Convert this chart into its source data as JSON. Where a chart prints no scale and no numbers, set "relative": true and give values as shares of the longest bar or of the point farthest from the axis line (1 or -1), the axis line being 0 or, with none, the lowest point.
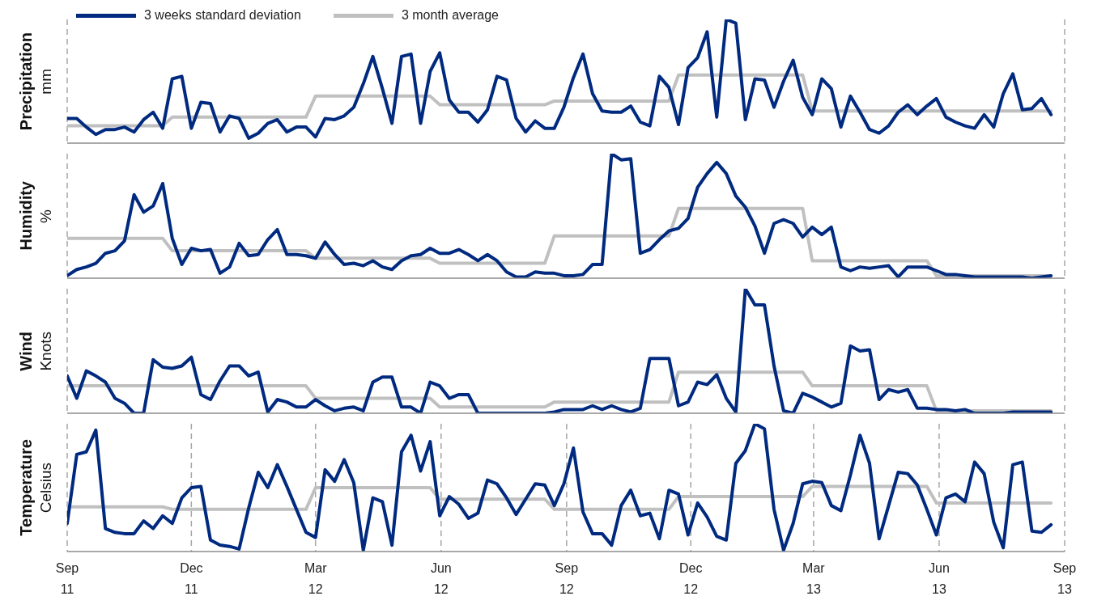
{
  "chart_data": [
    {
      "type": "line",
      "ylabel": "Precipitation",
      "annotations": [
        "mm"
      ],
      "relative": true,
      "legend": "top left",
      "grid": "x",
      "tick_labels": false,
      "marker": "none",
      "xlim": [
        "2011-09-01",
        "2013-09-01"
      ],
      "xticks": [
        {
          "value": "2011-09-01",
          "label": null
        },
        {
          "value": "2011-12-01",
          "label": null
        },
        {
          "value": "2012-03-01",
          "label": null
        },
        {
          "value": "2012-06-01",
          "label": null
        },
        {
          "value": "2012-09-01",
          "label": null
        },
        {
          "value": "2012-12-01",
          "label": null
        },
        {
          "value": "2013-03-01",
          "label": null
        },
        {
          "value": "2013-06-01",
          "label": null
        },
        {
          "value": "2013-09-01",
          "label": null
        }
      ],
      "x": [
        "2011-09-01",
        "2011-09-08",
        "2011-09-15",
        "2011-09-22",
        "2011-09-29",
        "2011-10-06",
        "2011-10-13",
        "2011-10-20",
        "2011-10-27",
        "2011-11-03",
        "2011-11-10",
        "2011-11-17",
        "2011-11-24",
        "2011-12-01",
        "2011-12-08",
        "2011-12-15",
        "2011-12-22",
        "2011-12-29",
        "2012-01-05",
        "2012-01-12",
        "2012-01-19",
        "2012-01-26",
        "2012-02-02",
        "2012-02-09",
        "2012-02-16",
        "2012-02-23",
        "2012-03-01",
        "2012-03-08",
        "2012-03-15",
        "2012-03-22",
        "2012-03-29",
        "2012-04-05",
        "2012-04-12",
        "2012-04-19",
        "2012-04-26",
        "2012-05-03",
        "2012-05-10",
        "2012-05-17",
        "2012-05-24",
        "2012-05-31",
        "2012-06-07",
        "2012-06-14",
        "2012-06-21",
        "2012-06-28",
        "2012-07-05",
        "2012-07-12",
        "2012-07-19",
        "2012-07-26",
        "2012-08-02",
        "2012-08-09",
        "2012-08-16",
        "2012-08-23",
        "2012-08-30",
        "2012-09-06",
        "2012-09-13",
        "2012-09-20",
        "2012-09-27",
        "2012-10-04",
        "2012-10-11",
        "2012-10-18",
        "2012-10-25",
        "2012-11-01",
        "2012-11-08",
        "2012-11-15",
        "2012-11-22",
        "2012-11-29",
        "2012-12-06",
        "2012-12-13",
        "2012-12-20",
        "2012-12-27",
        "2013-01-03",
        "2013-01-10",
        "2013-01-17",
        "2013-01-24",
        "2013-01-31",
        "2013-02-07",
        "2013-02-14",
        "2013-02-21",
        "2013-02-28",
        "2013-03-07",
        "2013-03-14",
        "2013-03-21",
        "2013-03-28",
        "2013-04-04",
        "2013-04-11",
        "2013-04-18",
        "2013-04-25",
        "2013-05-02",
        "2013-05-09",
        "2013-05-16",
        "2013-05-23",
        "2013-05-30",
        "2013-06-06",
        "2013-06-13",
        "2013-06-20",
        "2013-06-27",
        "2013-07-04",
        "2013-07-11",
        "2013-07-18",
        "2013-07-25",
        "2013-08-01",
        "2013-08-08",
        "2013-08-15",
        "2013-08-22"
      ],
      "series": [
        {
          "name": "3 weeks standard deviation",
          "color": "#002a7f",
          "values": [
            0.2,
            0.2,
            0.13,
            0.07,
            0.11,
            0.11,
            0.13,
            0.09,
            0.19,
            0.25,
            0.12,
            0.52,
            0.54,
            0.12,
            0.33,
            0.32,
            0.09,
            0.22,
            0.2,
            0.04,
            0.08,
            0.16,
            0.19,
            0.09,
            0.13,
            0.13,
            0.05,
            0.2,
            0.19,
            0.22,
            0.29,
            0.48,
            0.7,
            0.44,
            0.16,
            0.7,
            0.72,
            0.16,
            0.58,
            0.73,
            0.35,
            0.25,
            0.25,
            0.17,
            0.27,
            0.54,
            0.51,
            0.2,
            0.09,
            0.18,
            0.12,
            0.12,
            0.29,
            0.53,
            0.72,
            0.4,
            0.26,
            0.25,
            0.25,
            0.3,
            0.17,
            0.14,
            0.54,
            0.45,
            0.15,
            0.61,
            0.69,
            0.9,
            0.21,
            1.0,
            0.97,
            0.19,
            0.52,
            0.51,
            0.29,
            0.5,
            0.67,
            0.37,
            0.23,
            0.52,
            0.44,
            0.13,
            0.38,
            0.25,
            0.11,
            0.08,
            0.14,
            0.25,
            0.31,
            0.23,
            0.3,
            0.36,
            0.21,
            0.17,
            0.14,
            0.12,
            0.23,
            0.13,
            0.4,
            0.56,
            0.27,
            0.28,
            0.36,
            0.23
          ]
        },
        {
          "name": "3 month average",
          "color": "#c0c0c0",
          "x": [
            "2011-09-01",
            "2011-11-10",
            "2011-11-17",
            "2012-02-23",
            "2012-03-01",
            "2012-05-24",
            "2012-05-31",
            "2012-08-16",
            "2012-08-23",
            "2012-11-15",
            "2012-11-22",
            "2013-02-21",
            "2013-02-28",
            "2013-05-23",
            "2013-05-30",
            "2013-08-22"
          ],
          "values": [
            0.14,
            0.14,
            0.21,
            0.21,
            0.38,
            0.38,
            0.31,
            0.31,
            0.34,
            0.34,
            0.55,
            0.55,
            0.26,
            0.26,
            0.26,
            0.26
          ]
        }
      ]
    },
    {
      "type": "line",
      "ylabel": "Humidity",
      "annotations": [
        "%"
      ],
      "relative": true,
      "grid": "x",
      "tick_labels": false,
      "marker": "none",
      "xlim": [
        "2011-09-01",
        "2013-09-01"
      ],
      "xticks": [
        {
          "value": "2011-09-01",
          "label": null
        },
        {
          "value": "2011-12-01",
          "label": null
        },
        {
          "value": "2012-03-01",
          "label": null
        },
        {
          "value": "2012-06-01",
          "label": null
        },
        {
          "value": "2012-09-01",
          "label": null
        },
        {
          "value": "2012-12-01",
          "label": null
        },
        {
          "value": "2013-03-01",
          "label": null
        },
        {
          "value": "2013-06-01",
          "label": null
        },
        {
          "value": "2013-09-01",
          "label": null
        }
      ],
      "x": [
        "2011-09-01",
        "2011-09-08",
        "2011-09-15",
        "2011-09-22",
        "2011-09-29",
        "2011-10-06",
        "2011-10-13",
        "2011-10-20",
        "2011-10-27",
        "2011-11-03",
        "2011-11-10",
        "2011-11-17",
        "2011-11-24",
        "2011-12-01",
        "2011-12-08",
        "2011-12-15",
        "2011-12-22",
        "2011-12-29",
        "2012-01-05",
        "2012-01-12",
        "2012-01-19",
        "2012-01-26",
        "2012-02-02",
        "2012-02-09",
        "2012-02-16",
        "2012-02-23",
        "2012-03-01",
        "2012-03-08",
        "2012-03-15",
        "2012-03-22",
        "2012-03-29",
        "2012-04-05",
        "2012-04-12",
        "2012-04-19",
        "2012-04-26",
        "2012-05-03",
        "2012-05-10",
        "2012-05-17",
        "2012-05-24",
        "2012-05-31",
        "2012-06-07",
        "2012-06-14",
        "2012-06-21",
        "2012-06-28",
        "2012-07-05",
        "2012-07-12",
        "2012-07-19",
        "2012-07-26",
        "2012-08-02",
        "2012-08-09",
        "2012-08-16",
        "2012-08-23",
        "2012-08-30",
        "2012-09-06",
        "2012-09-13",
        "2012-09-20",
        "2012-09-27",
        "2012-10-04",
        "2012-10-11",
        "2012-10-18",
        "2012-10-25",
        "2012-11-01",
        "2012-11-08",
        "2012-11-15",
        "2012-11-22",
        "2012-11-29",
        "2012-12-06",
        "2012-12-13",
        "2012-12-20",
        "2012-12-27",
        "2013-01-03",
        "2013-01-10",
        "2013-01-17",
        "2013-01-24",
        "2013-01-31",
        "2013-02-07",
        "2013-02-14",
        "2013-02-21",
        "2013-02-28",
        "2013-03-07",
        "2013-03-14",
        "2013-03-21",
        "2013-03-28",
        "2013-04-04",
        "2013-04-11",
        "2013-04-18",
        "2013-04-25",
        "2013-05-02",
        "2013-05-09",
        "2013-05-16",
        "2013-05-23",
        "2013-05-30",
        "2013-06-06",
        "2013-06-13",
        "2013-06-20",
        "2013-06-27",
        "2013-07-04",
        "2013-07-11",
        "2013-07-18",
        "2013-07-25",
        "2013-08-01",
        "2013-08-08",
        "2013-08-15",
        "2013-08-22"
      ],
      "series": [
        {
          "color": "#002a7f",
          "values": [
            0.02,
            0.07,
            0.09,
            0.12,
            0.2,
            0.22,
            0.3,
            0.67,
            0.53,
            0.58,
            0.76,
            0.32,
            0.11,
            0.24,
            0.22,
            0.23,
            0.04,
            0.09,
            0.28,
            0.18,
            0.19,
            0.31,
            0.39,
            0.19,
            0.19,
            0.18,
            0.16,
            0.29,
            0.19,
            0.11,
            0.12,
            0.1,
            0.14,
            0.09,
            0.07,
            0.14,
            0.18,
            0.19,
            0.24,
            0.2,
            0.2,
            0.23,
            0.19,
            0.14,
            0.19,
            0.14,
            0.05,
            0.01,
            0.01,
            0.05,
            0.04,
            0.04,
            0.02,
            0.02,
            0.03,
            0.11,
            0.11,
            1.0,
            0.95,
            0.96,
            0.2,
            0.23,
            0.31,
            0.38,
            0.4,
            0.48,
            0.73,
            0.84,
            0.93,
            0.84,
            0.66,
            0.57,
            0.42,
            0.2,
            0.44,
            0.47,
            0.44,
            0.33,
            0.41,
            0.35,
            0.41,
            0.09,
            0.06,
            0.09,
            0.08,
            0.09,
            0.1,
            0.01,
            0.09,
            0.09,
            0.09,
            0.06,
            0.03,
            0.03,
            0.02,
            0.01,
            0.01,
            0.01,
            0.01,
            0.01,
            0.01,
            0,
            0.01,
            0.02
          ]
        },
        {
          "color": "#c0c0c0",
          "x": [
            "2011-09-01",
            "2011-11-10",
            "2011-11-17",
            "2012-02-23",
            "2012-03-01",
            "2012-05-24",
            "2012-05-31",
            "2012-08-16",
            "2012-08-23",
            "2012-11-15",
            "2012-11-22",
            "2013-02-21",
            "2013-02-28",
            "2013-05-23",
            "2013-05-30",
            "2013-08-22"
          ],
          "values": [
            0.32,
            0.32,
            0.22,
            0.22,
            0.16,
            0.16,
            0.12,
            0.12,
            0.34,
            0.34,
            0.56,
            0.56,
            0.14,
            0.14,
            0.02,
            0.02
          ]
        }
      ]
    },
    {
      "type": "line",
      "ylabel": "Wind",
      "annotations": [
        "Knots"
      ],
      "relative": true,
      "grid": "x",
      "tick_labels": false,
      "marker": "none",
      "xlim": [
        "2011-09-01",
        "2013-09-01"
      ],
      "xticks": [
        {
          "value": "2011-09-01",
          "label": null
        },
        {
          "value": "2011-12-01",
          "label": null
        },
        {
          "value": "2012-03-01",
          "label": null
        },
        {
          "value": "2012-06-01",
          "label": null
        },
        {
          "value": "2012-09-01",
          "label": null
        },
        {
          "value": "2012-12-01",
          "label": null
        },
        {
          "value": "2013-03-01",
          "label": null
        },
        {
          "value": "2013-06-01",
          "label": null
        },
        {
          "value": "2013-09-01",
          "label": null
        }
      ],
      "x": [
        "2011-09-01",
        "2011-09-08",
        "2011-09-15",
        "2011-09-22",
        "2011-09-29",
        "2011-10-06",
        "2011-10-13",
        "2011-10-20",
        "2011-10-27",
        "2011-11-03",
        "2011-11-10",
        "2011-11-17",
        "2011-11-24",
        "2011-12-01",
        "2011-12-08",
        "2011-12-15",
        "2011-12-22",
        "2011-12-29",
        "2012-01-05",
        "2012-01-12",
        "2012-01-19",
        "2012-01-26",
        "2012-02-02",
        "2012-02-09",
        "2012-02-16",
        "2012-02-23",
        "2012-03-01",
        "2012-03-08",
        "2012-03-15",
        "2012-03-22",
        "2012-03-29",
        "2012-04-05",
        "2012-04-12",
        "2012-04-19",
        "2012-04-26",
        "2012-05-03",
        "2012-05-10",
        "2012-05-17",
        "2012-05-24",
        "2012-05-31",
        "2012-06-07",
        "2012-06-14",
        "2012-06-21",
        "2012-06-28",
        "2012-07-05",
        "2012-07-12",
        "2012-07-19",
        "2012-07-26",
        "2012-08-02",
        "2012-08-09",
        "2012-08-16",
        "2012-08-23",
        "2012-08-30",
        "2012-09-06",
        "2012-09-13",
        "2012-09-20",
        "2012-09-27",
        "2012-10-04",
        "2012-10-11",
        "2012-10-18",
        "2012-10-25",
        "2012-11-01",
        "2012-11-08",
        "2012-11-15",
        "2012-11-22",
        "2012-11-29",
        "2012-12-06",
        "2012-12-13",
        "2012-12-20",
        "2012-12-27",
        "2013-01-03",
        "2013-01-10",
        "2013-01-17",
        "2013-01-24",
        "2013-01-31",
        "2013-02-07",
        "2013-02-14",
        "2013-02-21",
        "2013-02-28",
        "2013-03-07",
        "2013-03-14",
        "2013-03-21",
        "2013-03-28",
        "2013-04-04",
        "2013-04-11",
        "2013-04-18",
        "2013-04-25",
        "2013-05-02",
        "2013-05-09",
        "2013-05-16",
        "2013-05-23",
        "2013-05-30",
        "2013-06-06",
        "2013-06-13",
        "2013-06-20",
        "2013-06-27",
        "2013-07-04",
        "2013-07-11",
        "2013-07-18",
        "2013-07-25",
        "2013-08-01",
        "2013-08-08",
        "2013-08-15",
        "2013-08-22"
      ],
      "series": [
        {
          "color": "#002a7f",
          "values": [
            0.3,
            0.12,
            0.34,
            0.3,
            0.25,
            0.12,
            0.08,
            0,
            0,
            0.43,
            0.37,
            0.36,
            0.38,
            0.45,
            0.15,
            0.11,
            0.26,
            0.38,
            0.38,
            0.3,
            0.33,
            0.01,
            0.11,
            0.09,
            0.05,
            0.05,
            0.11,
            0.06,
            0.02,
            0.04,
            0.05,
            0.02,
            0.25,
            0.29,
            0.29,
            0.05,
            0.05,
            0,
            0.25,
            0.22,
            0.12,
            0.15,
            0.15,
            0,
            0,
            0,
            0,
            0,
            0,
            0,
            0,
            0.01,
            0.03,
            0.03,
            0.03,
            0.06,
            0.03,
            0.06,
            0.03,
            0.01,
            0.04,
            0.44,
            0.44,
            0.44,
            0.06,
            0.09,
            0.25,
            0.23,
            0.31,
            0.12,
            0.01,
            1.0,
            0.87,
            0.87,
            0.38,
            0.02,
            0,
            0.16,
            0.13,
            0.09,
            0.05,
            0.08,
            0.54,
            0.5,
            0.51,
            0.11,
            0.19,
            0.17,
            0.19,
            0.04,
            0.04,
            0.03,
            0.03,
            0.02,
            0.03,
            0,
            0,
            0,
            0,
            0.01,
            0.01,
            0.01,
            0.01,
            0.01
          ]
        },
        {
          "color": "#c0c0c0",
          "x": [
            "2011-09-01",
            "2011-11-10",
            "2011-11-17",
            "2012-02-23",
            "2012-03-01",
            "2012-05-24",
            "2012-05-31",
            "2012-08-16",
            "2012-08-23",
            "2012-11-15",
            "2012-11-22",
            "2013-02-21",
            "2013-02-28",
            "2013-05-23",
            "2013-05-30",
            "2013-08-22"
          ],
          "values": [
            0.22,
            0.22,
            0.22,
            0.22,
            0.12,
            0.12,
            0.05,
            0.05,
            0.09,
            0.09,
            0.33,
            0.33,
            0.22,
            0.22,
            0.02,
            0.02
          ]
        }
      ]
    },
    {
      "type": "line",
      "ylabel": "Temperature",
      "annotations": [
        "Celsius"
      ],
      "relative": true,
      "grid": "x",
      "tick_labels": "x",
      "marker": "none",
      "xlim": [
        "2011-09-01",
        "2013-09-01"
      ],
      "xticks": [
        {
          "value": "2011-09-01",
          "label": "Sep 11"
        },
        {
          "value": "2011-12-01",
          "label": "Dec 11"
        },
        {
          "value": "2012-03-01",
          "label": "Mar 12"
        },
        {
          "value": "2012-06-01",
          "label": "Jun 12"
        },
        {
          "value": "2012-09-01",
          "label": "Sep 12"
        },
        {
          "value": "2012-12-01",
          "label": "Dec 12"
        },
        {
          "value": "2013-03-01",
          "label": "Mar 13"
        },
        {
          "value": "2013-06-01",
          "label": "Jun 13"
        },
        {
          "value": "2013-09-01",
          "label": "Sep 13"
        }
      ],
      "x": [
        "2011-09-01",
        "2011-09-08",
        "2011-09-15",
        "2011-09-22",
        "2011-09-29",
        "2011-10-06",
        "2011-10-13",
        "2011-10-20",
        "2011-10-27",
        "2011-11-03",
        "2011-11-10",
        "2011-11-17",
        "2011-11-24",
        "2011-12-01",
        "2011-12-08",
        "2011-12-15",
        "2011-12-22",
        "2011-12-29",
        "2012-01-05",
        "2012-01-12",
        "2012-01-19",
        "2012-01-26",
        "2012-02-02",
        "2012-02-09",
        "2012-02-16",
        "2012-02-23",
        "2012-03-01",
        "2012-03-08",
        "2012-03-15",
        "2012-03-22",
        "2012-03-29",
        "2012-04-05",
        "2012-04-12",
        "2012-04-19",
        "2012-04-26",
        "2012-05-03",
        "2012-05-10",
        "2012-05-17",
        "2012-05-24",
        "2012-05-31",
        "2012-06-07",
        "2012-06-14",
        "2012-06-21",
        "2012-06-28",
        "2012-07-05",
        "2012-07-12",
        "2012-07-19",
        "2012-07-26",
        "2012-08-02",
        "2012-08-09",
        "2012-08-16",
        "2012-08-23",
        "2012-08-30",
        "2012-09-06",
        "2012-09-13",
        "2012-09-20",
        "2012-09-27",
        "2012-10-04",
        "2012-10-11",
        "2012-10-18",
        "2012-10-25",
        "2012-11-01",
        "2012-11-08",
        "2012-11-15",
        "2012-11-22",
        "2012-11-29",
        "2012-12-06",
        "2012-12-13",
        "2012-12-20",
        "2012-12-27",
        "2013-01-03",
        "2013-01-10",
        "2013-01-17",
        "2013-01-24",
        "2013-01-31",
        "2013-02-07",
        "2013-02-14",
        "2013-02-21",
        "2013-02-28",
        "2013-03-07",
        "2013-03-14",
        "2013-03-21",
        "2013-03-28",
        "2013-04-04",
        "2013-04-11",
        "2013-04-18",
        "2013-04-25",
        "2013-05-02",
        "2013-05-09",
        "2013-05-16",
        "2013-05-23",
        "2013-05-30",
        "2013-06-06",
        "2013-06-13",
        "2013-06-20",
        "2013-06-27",
        "2013-07-04",
        "2013-07-11",
        "2013-07-18",
        "2013-07-25",
        "2013-08-01",
        "2013-08-08",
        "2013-08-15",
        "2013-08-22"
      ],
      "series": [
        {
          "color": "#002a7f",
          "values": [
            0.22,
            0.76,
            0.78,
            0.95,
            0.18,
            0.15,
            0.14,
            0.14,
            0.24,
            0.18,
            0.28,
            0.22,
            0.42,
            0.5,
            0.51,
            0.09,
            0.05,
            0.04,
            0.02,
            0.34,
            0.62,
            0.5,
            0.68,
            0.51,
            0.33,
            0.15,
            0.11,
            0.64,
            0.55,
            0.72,
            0.54,
            0.01,
            0.42,
            0.39,
            0.05,
            0.78,
            0.91,
            0.63,
            0.86,
            0.28,
            0.43,
            0.37,
            0.26,
            0.3,
            0.56,
            0.53,
            0.42,
            0.29,
            0.41,
            0.53,
            0.52,
            0.36,
            0.53,
            0.81,
            0.31,
            0.14,
            0.14,
            0.05,
            0.36,
            0.48,
            0.28,
            0.3,
            0.1,
            0.48,
            0.45,
            0.13,
            0.38,
            0.27,
            0.12,
            0.09,
            0.69,
            0.79,
            1.0,
            0.96,
            0.33,
            0.01,
            0.22,
            0.53,
            0.55,
            0.54,
            0.36,
            0.32,
            0.6,
            0.91,
            0.69,
            0.1,
            0.36,
            0.62,
            0.61,
            0.52,
            0.33,
            0.13,
            0.42,
            0.45,
            0.39,
            0.7,
            0.61,
            0.23,
            0.03,
            0.68,
            0.7,
            0.16,
            0.15,
            0.21
          ]
        },
        {
          "color": "#c0c0c0",
          "x": [
            "2011-09-01",
            "2011-11-10",
            "2011-11-17",
            "2012-02-23",
            "2012-03-01",
            "2012-05-24",
            "2012-05-31",
            "2012-08-16",
            "2012-08-23",
            "2012-11-15",
            "2012-11-22",
            "2013-02-21",
            "2013-02-28",
            "2013-05-23",
            "2013-05-30",
            "2013-08-22"
          ],
          "values": [
            0.35,
            0.35,
            0.33,
            0.33,
            0.5,
            0.5,
            0.41,
            0.41,
            0.33,
            0.33,
            0.43,
            0.43,
            0.51,
            0.51,
            0.38,
            0.38
          ]
        }
      ]
    }
  ]
}
